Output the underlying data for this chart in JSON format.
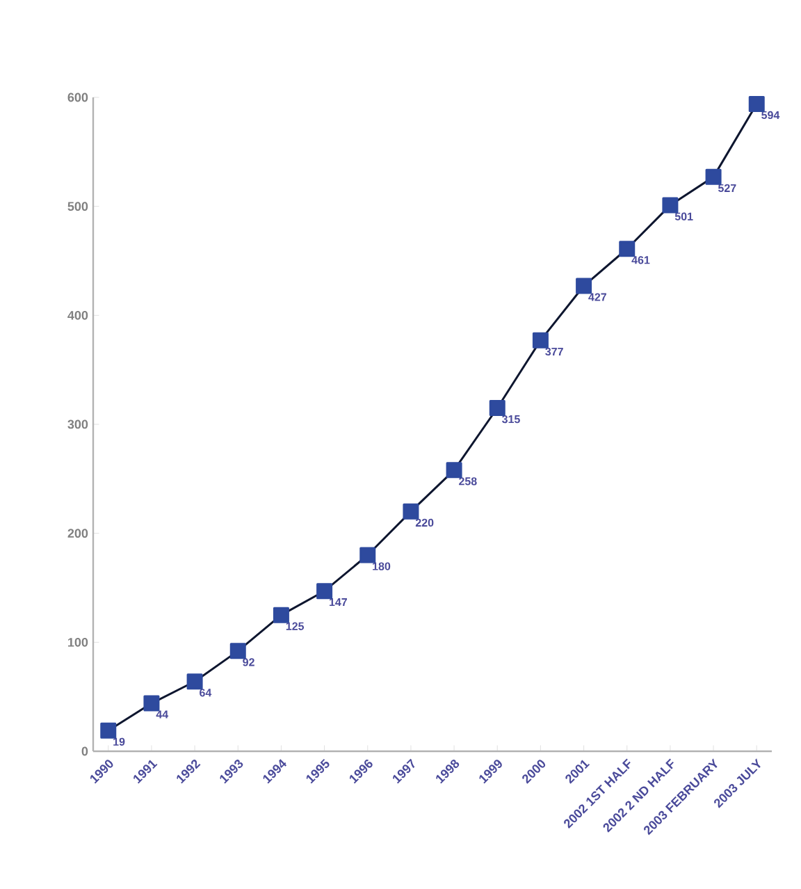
{
  "chart_data": {
    "type": "line",
    "categories": [
      "1990",
      "1991",
      "1992",
      "1993",
      "1994",
      "1995",
      "1996",
      "1997",
      "1998",
      "1999",
      "2000",
      "2001",
      "2002 1ST HALF",
      "2002 2 ND HALF",
      "2003 FEBRUARY",
      "2003 JULY"
    ],
    "values": [
      19,
      44,
      64,
      92,
      125,
      147,
      180,
      220,
      258,
      315,
      377,
      427,
      461,
      501,
      527,
      594
    ],
    "color": "#2e4a9e",
    "ylim": [
      0,
      600
    ],
    "yticks": [
      0,
      100,
      200,
      300,
      400,
      500,
      600
    ],
    "marker": "square",
    "line_style": "solid",
    "data_labels": true,
    "grid": false
  }
}
